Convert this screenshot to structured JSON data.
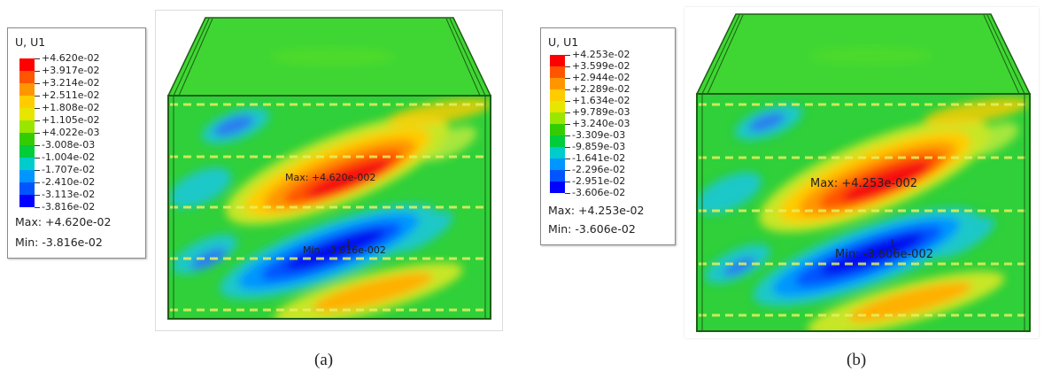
{
  "panels": [
    {
      "caption": "(a)",
      "legend": {
        "title": "U, U1",
        "ticks": [
          "+4.620e-02",
          "+3.917e-02",
          "+3.214e-02",
          "+2.511e-02",
          "+1.808e-02",
          "+1.105e-02",
          "+4.022e-03",
          "-3.008e-03",
          "-1.004e-02",
          "-1.707e-02",
          "-2.410e-02",
          "-3.113e-02",
          "-3.816e-02"
        ],
        "max": "Max: +4.620e-02",
        "min": "Min: -3.816e-02"
      },
      "max_label": "Max: +4.620e-002",
      "min_label": "Min: -3.816e-002"
    },
    {
      "caption": "(b)",
      "legend": {
        "title": "U, U1",
        "ticks": [
          "+4.253e-02",
          "+3.599e-02",
          "+2.944e-02",
          "+2.289e-02",
          "+1.634e-02",
          "+9.789e-03",
          "+3.240e-03",
          "-3.309e-03",
          "-9.859e-03",
          "-1.641e-02",
          "-2.296e-02",
          "-2.951e-02",
          "-3.606e-02"
        ],
        "max": "Max: +4.253e-02",
        "min": "Min: -3.606e-02"
      },
      "max_label": "Max: +4.253e-002",
      "min_label": "Min: -3.606e-002"
    }
  ],
  "colors": {
    "contour_scale": [
      "#ff0000",
      "#ff5500",
      "#ff9600",
      "#ffcc00",
      "#e6e600",
      "#99e600",
      "#33cc00",
      "#00cc3c",
      "#00cccc",
      "#0096ff",
      "#0055ff",
      "#0000ff"
    ],
    "frame": "#1e5e14"
  }
}
